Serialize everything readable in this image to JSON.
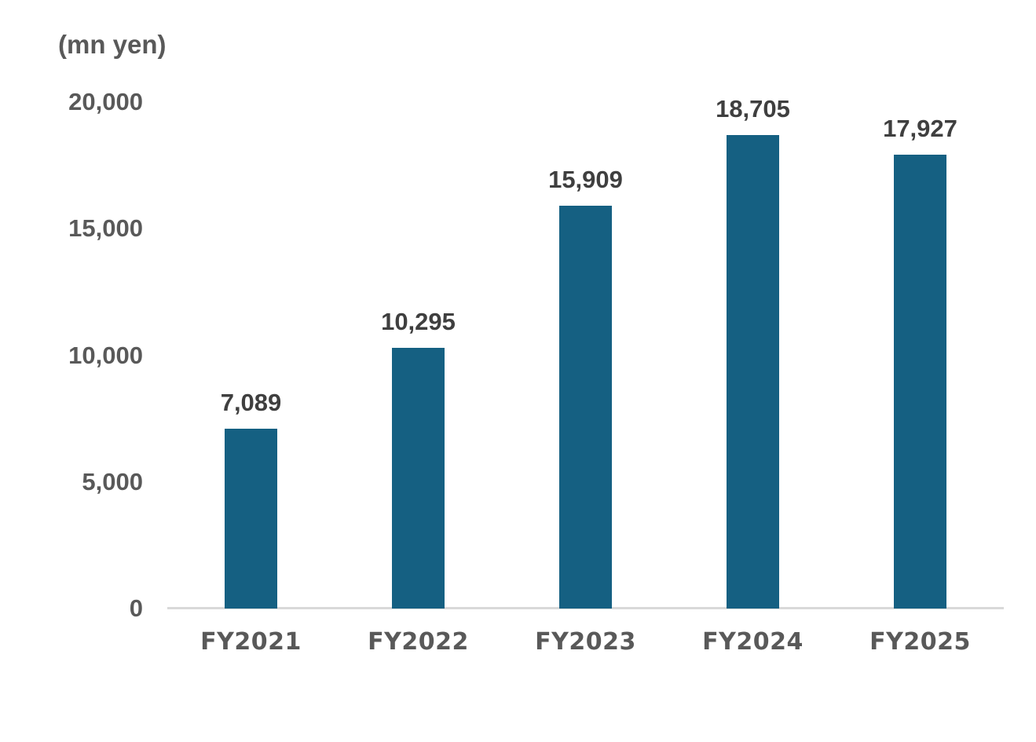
{
  "chart_data": {
    "type": "bar",
    "title": "",
    "unit_label": "(mn yen)",
    "categories": [
      "FY2021",
      "FY2022",
      "FY2023",
      "FY2024",
      "FY2025"
    ],
    "values": [
      7089,
      10295,
      15909,
      18705,
      17927
    ],
    "value_labels": [
      "7,089",
      "10,295",
      "15,909",
      "18,705",
      "17,927"
    ],
    "xlabel": "",
    "ylabel": "(mn yen)",
    "ylim": [
      0,
      20000
    ],
    "yticks": [
      0,
      5000,
      10000,
      15000,
      20000
    ],
    "ytick_labels": [
      "0",
      "5,000",
      "10,000",
      "15,000",
      "20,000"
    ],
    "grid": "off",
    "legend": "none",
    "colors": {
      "bar": "#156082",
      "axis_line": "#d9d9d9",
      "data_label_text": "#3f3f3f",
      "tick_label_text": "#595959"
    }
  }
}
